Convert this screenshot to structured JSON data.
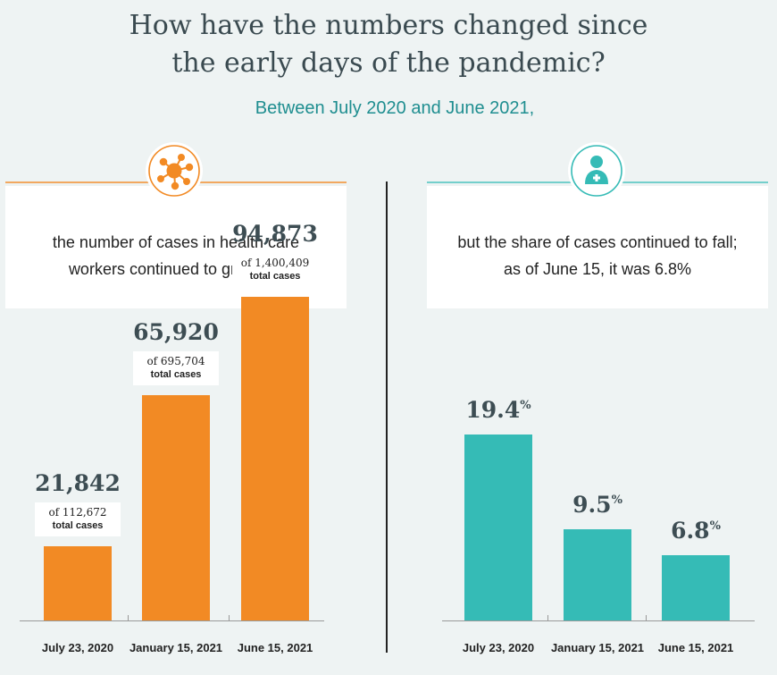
{
  "title_line1": "How have the numbers changed since",
  "title_line2": "the early days of the pandemic?",
  "subtitle": "Between July 2020 and June 2021,",
  "left_card": {
    "line1": "the number of cases in health care",
    "line2": "workers continued to grow . . ."
  },
  "right_card": {
    "line1": "but the share of cases continued to fall;",
    "line2": "as of June 15, it was 6.8%"
  },
  "colors": {
    "orange": "#f28a24",
    "teal": "#35bbb6",
    "title": "#3a4a50",
    "subtitle": "#1f8e90"
  },
  "icons": {
    "left": "virus-icon",
    "right": "health-worker-icon"
  },
  "chart_data": [
    {
      "type": "bar",
      "categories": [
        "July 23, 2020",
        "January 15, 2021",
        "June 15, 2021"
      ],
      "values": [
        21842,
        65920,
        94873
      ],
      "value_labels": [
        "21,842",
        "65,920",
        "94,873"
      ],
      "totals_lines": [
        "of 112,672",
        "of 695,704",
        "of 1,400,409"
      ],
      "totals_suffix": "total cases",
      "ylim": [
        0,
        110000
      ],
      "color": "#f28a24",
      "grid": false
    },
    {
      "type": "bar",
      "categories": [
        "July 23, 2020",
        "January 15, 2021",
        "June 15, 2021"
      ],
      "values": [
        19.4,
        9.5,
        6.8
      ],
      "value_labels": [
        "19.4",
        "9.5",
        "6.8"
      ],
      "unit_suffix": "%",
      "ylim": [
        0,
        36
      ],
      "color": "#35bbb6",
      "grid": false
    }
  ]
}
